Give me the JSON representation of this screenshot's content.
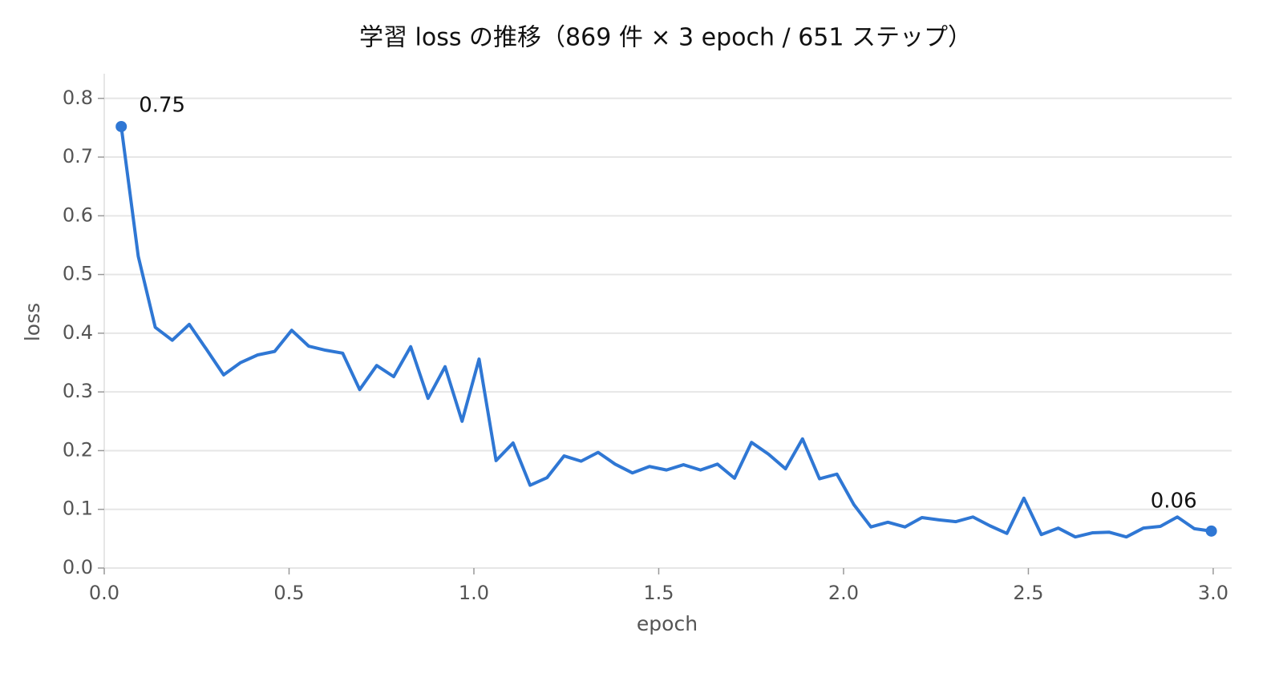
{
  "chart_data": {
    "type": "line",
    "title": "学習 loss の推移（869 件 × 3 epoch / 651 ステップ）",
    "xlabel": "epoch",
    "ylabel": "loss",
    "x": [
      0.046,
      0.092,
      0.138,
      0.184,
      0.23,
      0.276,
      0.323,
      0.369,
      0.415,
      0.461,
      0.507,
      0.553,
      0.599,
      0.645,
      0.691,
      0.737,
      0.783,
      0.829,
      0.876,
      0.922,
      0.968,
      1.014,
      1.06,
      1.106,
      1.152,
      1.198,
      1.244,
      1.29,
      1.336,
      1.382,
      1.429,
      1.475,
      1.521,
      1.567,
      1.613,
      1.659,
      1.705,
      1.751,
      1.797,
      1.843,
      1.889,
      1.935,
      1.982,
      2.028,
      2.074,
      2.12,
      2.166,
      2.212,
      2.258,
      2.304,
      2.35,
      2.396,
      2.442,
      2.488,
      2.535,
      2.581,
      2.627,
      2.673,
      2.719,
      2.765,
      2.811,
      2.857,
      2.903,
      2.949,
      2.995
    ],
    "series": [
      {
        "color": "#2f77d4",
        "values": [
          0.752,
          0.531,
          0.41,
          0.388,
          0.415,
          0.373,
          0.329,
          0.35,
          0.363,
          0.369,
          0.405,
          0.378,
          0.371,
          0.366,
          0.304,
          0.345,
          0.326,
          0.377,
          0.289,
          0.343,
          0.25,
          0.356,
          0.183,
          0.213,
          0.141,
          0.154,
          0.191,
          0.182,
          0.197,
          0.177,
          0.162,
          0.173,
          0.167,
          0.176,
          0.167,
          0.177,
          0.153,
          0.214,
          0.194,
          0.169,
          0.22,
          0.152,
          0.16,
          0.108,
          0.07,
          0.078,
          0.07,
          0.086,
          0.082,
          0.079,
          0.087,
          0.072,
          0.059,
          0.119,
          0.057,
          0.068,
          0.053,
          0.06,
          0.061,
          0.053,
          0.068,
          0.071,
          0.087,
          0.067,
          0.063
        ],
        "value_labels": [
          "0.75",
          null,
          null,
          null,
          null,
          null,
          null,
          null,
          null,
          null,
          null,
          null,
          null,
          null,
          null,
          null,
          null,
          null,
          null,
          null,
          null,
          null,
          null,
          null,
          null,
          null,
          null,
          null,
          null,
          null,
          null,
          null,
          null,
          null,
          null,
          null,
          null,
          null,
          null,
          null,
          null,
          null,
          null,
          null,
          null,
          null,
          null,
          null,
          null,
          null,
          null,
          null,
          null,
          null,
          null,
          null,
          null,
          null,
          null,
          null,
          null,
          null,
          null,
          null,
          "0.06"
        ]
      }
    ],
    "xlim": [
      0,
      3.05
    ],
    "ylim": [
      0,
      0.842
    ],
    "xticks": [
      {
        "value": 0,
        "label": "0.0"
      },
      0.5,
      {
        "value": 1,
        "label": "1.0"
      },
      1.5,
      {
        "value": 2,
        "label": "2.0"
      },
      2.5,
      {
        "value": 3,
        "label": "3.0"
      }
    ],
    "yticks": [
      {
        "value": 0,
        "label": "0.0"
      },
      0.1,
      0.2,
      0.3,
      0.4,
      0.5,
      0.6,
      0.7,
      0.8
    ],
    "grid": true
  }
}
